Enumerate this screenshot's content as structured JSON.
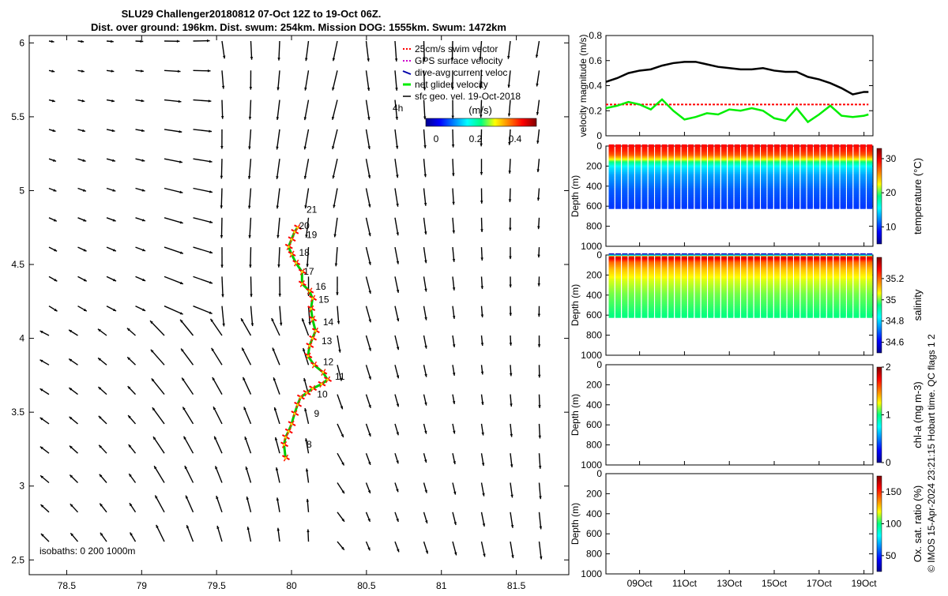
{
  "title": {
    "line1": "SLU29 Challenger20180812 07-Oct 12Z to 19-Oct 06Z.",
    "line2": "Dist. over ground: 196km. Dist. swum: 254km. Mission DOG: 1555km. Swum: 1472km"
  },
  "map": {
    "xticks": [
      "78.5",
      "79",
      "79.5",
      "80",
      "80.5",
      "81",
      "81.5"
    ],
    "yticks": [
      "2.5",
      "3",
      "3.5",
      "4",
      "4.5",
      "5",
      "5.5",
      "6"
    ],
    "xlim": [
      78.25,
      81.85
    ],
    "ylim": [
      2.4,
      6.05
    ],
    "legend": {
      "swim": "25cm/s swim vector",
      "gps": "GPS surface velocity",
      "dive": "dive-avg current veloc",
      "net": "net glider velocity",
      "sfc": "sfc geo. vel. 19-Oct-2018"
    },
    "scale_label": "4h",
    "colorbar_units": "(m/s)",
    "colorbar_ticks": [
      "0",
      "0.2",
      "0.4"
    ],
    "isobaths": "isobaths: 0   200  1000m",
    "day_labels": [
      "8",
      "9",
      "10",
      "11",
      "12",
      "13",
      "14",
      "15",
      "16",
      "17",
      "18",
      "19",
      "20",
      "21"
    ]
  },
  "chart_data": [
    {
      "type": "line",
      "title": "",
      "ylabel": "velocity magnitude (m/s)",
      "ylim": [
        0,
        0.8
      ],
      "yticks": [
        "0",
        "0.2",
        "0.4",
        "0.6",
        "0.8"
      ],
      "series": [
        {
          "name": "sfc geo. vel. 19-Oct-2018",
          "color": "#000000",
          "x": [
            7.5,
            8,
            8.5,
            9,
            9.5,
            10,
            10.5,
            11,
            11.5,
            12,
            12.5,
            13,
            13.5,
            14,
            14.5,
            15,
            15.5,
            16,
            16.5,
            17,
            17.5,
            18,
            18.5,
            19,
            19.2
          ],
          "y": [
            0.43,
            0.46,
            0.5,
            0.52,
            0.53,
            0.56,
            0.58,
            0.59,
            0.59,
            0.57,
            0.55,
            0.54,
            0.53,
            0.53,
            0.54,
            0.52,
            0.51,
            0.51,
            0.47,
            0.45,
            0.42,
            0.38,
            0.33,
            0.35,
            0.35
          ]
        },
        {
          "name": "25cm/s swim vector",
          "color": "#ff0000",
          "x": [
            7.5,
            19.2
          ],
          "y": [
            0.25,
            0.25
          ]
        },
        {
          "name": "net glider velocity",
          "color": "#00ee00",
          "x": [
            7.5,
            8,
            8.5,
            9,
            9.5,
            10,
            10.5,
            11,
            11.5,
            12,
            12.5,
            13,
            13.5,
            14,
            14.5,
            15,
            15.5,
            16,
            16.5,
            17,
            17.5,
            18,
            18.5,
            19,
            19.2
          ],
          "y": [
            0.22,
            0.24,
            0.27,
            0.25,
            0.21,
            0.29,
            0.2,
            0.13,
            0.15,
            0.18,
            0.17,
            0.21,
            0.2,
            0.22,
            0.2,
            0.14,
            0.12,
            0.22,
            0.11,
            0.17,
            0.24,
            0.16,
            0.15,
            0.16,
            0.17
          ]
        }
      ]
    },
    {
      "type": "scatter",
      "ylabel": "Depth (m)",
      "colorbar_label": "temperature (°C)",
      "ylim": [
        1000,
        0
      ],
      "clim": [
        5,
        33
      ],
      "colorbar_ticks": [
        "10",
        "20",
        "30"
      ],
      "profile_max_depth": 620,
      "profile_count": 40,
      "profiles": [
        {
          "depth": 0,
          "value": 29.5
        },
        {
          "depth": 60,
          "value": 28.5
        },
        {
          "depth": 100,
          "value": 27
        },
        {
          "depth": 130,
          "value": 24
        },
        {
          "depth": 170,
          "value": 19
        },
        {
          "depth": 220,
          "value": 15
        },
        {
          "depth": 300,
          "value": 13
        },
        {
          "depth": 450,
          "value": 11
        },
        {
          "depth": 620,
          "value": 10
        }
      ]
    },
    {
      "type": "scatter",
      "ylabel": "Depth (m)",
      "colorbar_label": "salinity",
      "ylim": [
        1000,
        0
      ],
      "clim": [
        34.5,
        35.4
      ],
      "colorbar_ticks": [
        "34.6",
        "34.8",
        "35",
        "35.2"
      ],
      "profile_max_depth": 620,
      "profile_count": 40,
      "profiles": [
        {
          "depth": 0,
          "value": 34.55
        },
        {
          "depth": 30,
          "value": 35.35
        },
        {
          "depth": 80,
          "value": 35.2
        },
        {
          "depth": 150,
          "value": 35.12
        },
        {
          "depth": 250,
          "value": 35.05
        },
        {
          "depth": 400,
          "value": 35.0
        },
        {
          "depth": 620,
          "value": 34.95
        }
      ]
    },
    {
      "type": "scatter",
      "ylabel": "Depth (m)",
      "colorbar_label": "chl-a (mg m-3)",
      "ylim": [
        1000,
        0
      ],
      "clim": [
        0,
        2
      ],
      "colorbar_ticks": [
        "0",
        "1",
        "2"
      ],
      "profiles": []
    },
    {
      "type": "scatter",
      "ylabel": "Depth (m)",
      "colorbar_label": "Ox. sat. ratio (%)",
      "ylim": [
        1000,
        0
      ],
      "clim": [
        25,
        175
      ],
      "colorbar_ticks": [
        "50",
        "100",
        "150"
      ],
      "profiles": []
    }
  ],
  "time_axis": {
    "xlim": [
      7.5,
      19.4
    ],
    "ticks": [
      {
        "label": "09Oct",
        "day": 9
      },
      {
        "label": "11Oct",
        "day": 11
      },
      {
        "label": "13Oct",
        "day": 13
      },
      {
        "label": "15Oct",
        "day": 15
      },
      {
        "label": "17Oct",
        "day": 17
      },
      {
        "label": "19Oct",
        "day": 19
      }
    ]
  },
  "depth_ticks": [
    "0",
    "200",
    "400",
    "600",
    "800",
    "1000"
  ],
  "footer": "© IMOS 15-Apr-2024 23:21:15 Hobart time. QC flags 1  2"
}
